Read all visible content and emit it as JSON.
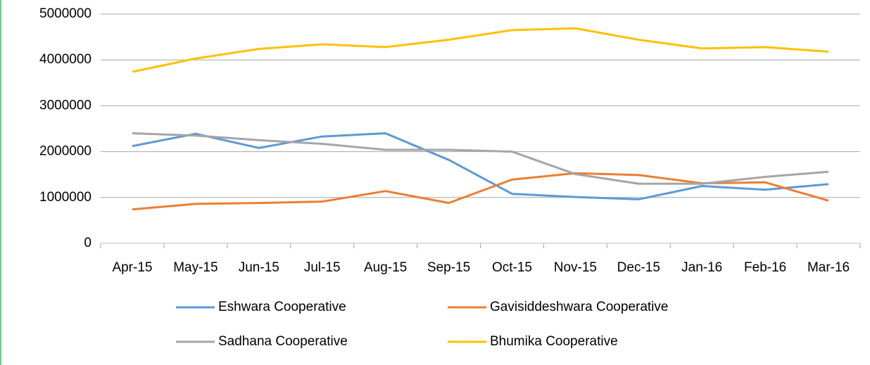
{
  "chart_data": {
    "type": "line",
    "categories": [
      "Apr-15",
      "May-15",
      "Jun-15",
      "Jul-15",
      "Aug-15",
      "Sep-15",
      "Oct-15",
      "Nov-15",
      "Dec-15",
      "Jan-16",
      "Feb-16",
      "Mar-16"
    ],
    "series": [
      {
        "name": "Eshwara Cooperative",
        "color": "#5b9bd5",
        "values": [
          2120000,
          2390000,
          2080000,
          2330000,
          2400000,
          1820000,
          1080000,
          1010000,
          960000,
          1250000,
          1170000,
          1290000
        ]
      },
      {
        "name": "Gavisiddeshwara Cooperative",
        "color": "#ed7d31",
        "values": [
          740000,
          860000,
          880000,
          910000,
          1140000,
          880000,
          1390000,
          1530000,
          1490000,
          1310000,
          1330000,
          930000
        ]
      },
      {
        "name": "Sadhana Cooperative",
        "color": "#a5a5a5",
        "values": [
          2400000,
          2350000,
          2250000,
          2170000,
          2040000,
          2040000,
          2000000,
          1510000,
          1300000,
          1300000,
          1450000,
          1560000
        ]
      },
      {
        "name": "Bhumika Cooperative",
        "color": "#ffc000",
        "values": [
          3740000,
          4030000,
          4240000,
          4340000,
          4280000,
          4440000,
          4650000,
          4690000,
          4440000,
          4250000,
          4280000,
          4180000
        ]
      }
    ],
    "ylim": [
      0,
      5000000
    ],
    "yticks": [
      0,
      1000000,
      2000000,
      3000000,
      4000000,
      5000000
    ],
    "grid": true,
    "legend": "bottom"
  }
}
